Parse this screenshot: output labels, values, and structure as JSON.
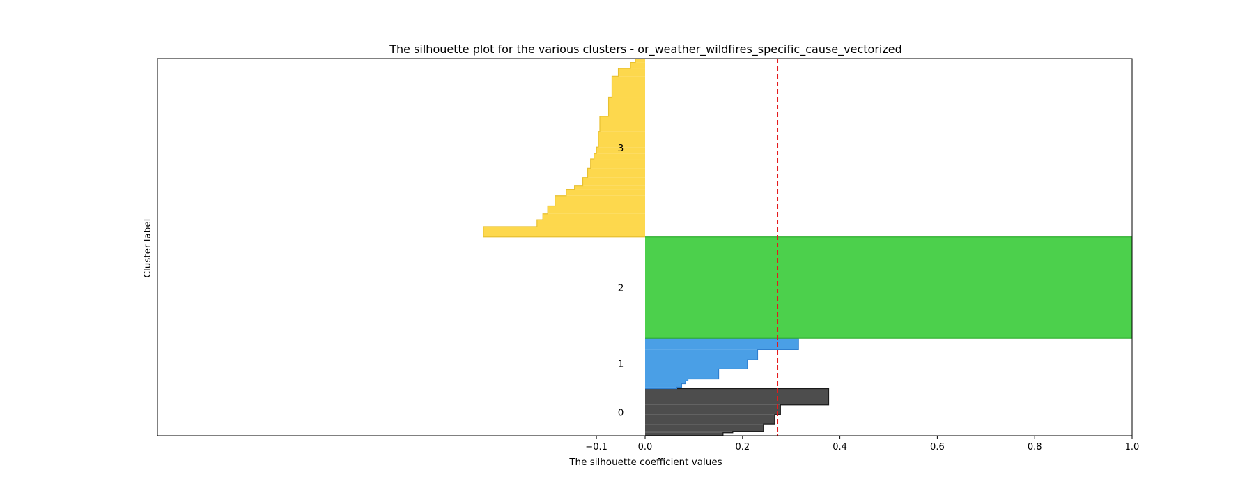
{
  "chart_data": {
    "type": "silhouette",
    "title": "The silhouette plot for the various clusters - or_weather_wildfires_specific_cause_vectorized",
    "xlabel": "The silhouette coefficient values",
    "ylabel": "Cluster label",
    "xlim": [
      -0.1,
      1.0
    ],
    "ylim": [
      0,
      77
    ],
    "xticks": [
      -0.1,
      0.0,
      0.2,
      0.4,
      0.6,
      0.8,
      1.0
    ],
    "xtick_labels": [
      "−0.1",
      "0.0",
      "0.2",
      "0.4",
      "0.6",
      "0.8",
      "1.0"
    ],
    "average_silhouette": 0.272,
    "average_line_color": "#e41a1c",
    "clusters": [
      {
        "label": "0",
        "color": "#4d4d4d",
        "edge_color": "#1a1a1a",
        "steps": [
          {
            "y0": 0.0,
            "y1": 0.6,
            "value": 0.16
          },
          {
            "y0": 0.6,
            "y1": 0.9,
            "value": 0.18
          },
          {
            "y0": 0.9,
            "y1": 2.4,
            "value": 0.243
          },
          {
            "y0": 2.4,
            "y1": 4.3,
            "value": 0.266
          },
          {
            "y0": 4.3,
            "y1": 6.3,
            "value": 0.278
          },
          {
            "y0": 6.3,
            "y1": 9.6,
            "value": 0.377
          }
        ]
      },
      {
        "label": "1",
        "color": "#4a9fe6",
        "edge_color": "#2f7fcf",
        "steps": [
          {
            "y0": 9.6,
            "y1": 9.9,
            "value": 0.065
          },
          {
            "y0": 9.9,
            "y1": 10.6,
            "value": 0.075
          },
          {
            "y0": 10.6,
            "y1": 11.2,
            "value": 0.083
          },
          {
            "y0": 11.2,
            "y1": 11.6,
            "value": 0.088
          },
          {
            "y0": 11.6,
            "y1": 13.6,
            "value": 0.151
          },
          {
            "y0": 13.6,
            "y1": 15.5,
            "value": 0.21
          },
          {
            "y0": 15.5,
            "y1": 17.6,
            "value": 0.231
          },
          {
            "y0": 17.6,
            "y1": 19.9,
            "value": 0.315
          }
        ]
      },
      {
        "label": "2",
        "color": "#4cd04c",
        "edge_color": "#2fae2f",
        "steps": [
          {
            "y0": 19.9,
            "y1": 40.6,
            "value": 1.0
          }
        ]
      },
      {
        "label": "3",
        "color": "#fdd84d",
        "edge_color": "#e8c030",
        "steps": [
          {
            "y0": 40.6,
            "y1": 42.7,
            "value": -0.332
          },
          {
            "y0": 42.7,
            "y1": 44.1,
            "value": -0.222
          },
          {
            "y0": 44.1,
            "y1": 45.3,
            "value": -0.21
          },
          {
            "y0": 45.3,
            "y1": 46.9,
            "value": -0.2
          },
          {
            "y0": 46.9,
            "y1": 49.0,
            "value": -0.185
          },
          {
            "y0": 49.0,
            "y1": 50.3,
            "value": -0.162
          },
          {
            "y0": 50.3,
            "y1": 51.0,
            "value": -0.145
          },
          {
            "y0": 51.0,
            "y1": 52.7,
            "value": -0.128
          },
          {
            "y0": 52.7,
            "y1": 54.6,
            "value": -0.118
          },
          {
            "y0": 54.6,
            "y1": 56.5,
            "value": -0.112
          },
          {
            "y0": 56.5,
            "y1": 57.6,
            "value": -0.105
          },
          {
            "y0": 57.6,
            "y1": 58.9,
            "value": -0.1
          },
          {
            "y0": 58.9,
            "y1": 62.1,
            "value": -0.096
          },
          {
            "y0": 62.1,
            "y1": 65.2,
            "value": -0.093
          },
          {
            "y0": 65.2,
            "y1": 69.1,
            "value": -0.075
          },
          {
            "y0": 69.1,
            "y1": 73.4,
            "value": -0.068
          },
          {
            "y0": 73.4,
            "y1": 75.0,
            "value": -0.055
          },
          {
            "y0": 75.0,
            "y1": 76.2,
            "value": -0.03
          },
          {
            "y0": 76.2,
            "y1": 77.0,
            "value": -0.02
          }
        ]
      }
    ]
  }
}
